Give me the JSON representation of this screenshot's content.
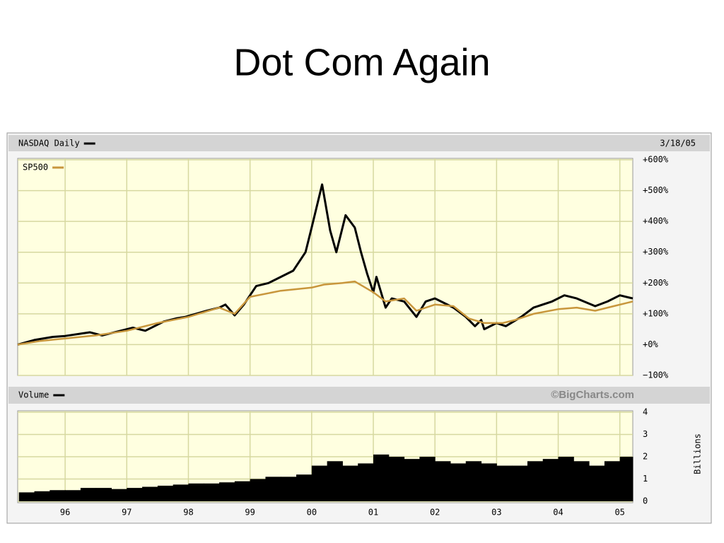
{
  "slide_title": "Dot Com Again",
  "chart_data": [
    {
      "type": "line",
      "date_label": "3/18/05",
      "xlim": [
        1995.23,
        2005.21
      ],
      "xticks": [
        1996,
        1997,
        1998,
        1999,
        2000,
        2001,
        2002,
        2003,
        2004,
        2005
      ],
      "ylim": [
        -100,
        600
      ],
      "yticks": [
        {
          "value": 600,
          "label": "+600%"
        },
        {
          "value": 500,
          "label": "+500%"
        },
        {
          "value": 400,
          "label": "+400%"
        },
        {
          "value": 300,
          "label": "+300%"
        },
        {
          "value": 200,
          "label": "+200%"
        },
        {
          "value": 100,
          "label": "+100%"
        },
        {
          "value": 0,
          "label": "+0%"
        },
        {
          "value": -100,
          "label": "−100%"
        }
      ],
      "grid": true,
      "series": [
        {
          "name": "NASDAQ Daily",
          "color": "#000000",
          "x": [
            1995.23,
            1995.5,
            1995.8,
            1996.0,
            1996.4,
            1996.6,
            1996.9,
            1997.1,
            1997.3,
            1997.6,
            1997.8,
            1997.95,
            1998.3,
            1998.5,
            1998.6,
            1998.75,
            1998.9,
            1999.1,
            1999.3,
            1999.5,
            1999.7,
            1999.9,
            2000.0,
            2000.17,
            2000.3,
            2000.4,
            2000.55,
            2000.7,
            2000.8,
            2000.9,
            2001.0,
            2001.05,
            2001.2,
            2001.3,
            2001.5,
            2001.7,
            2001.85,
            2002.0,
            2002.3,
            2002.5,
            2002.65,
            2002.75,
            2002.8,
            2003.0,
            2003.15,
            2003.4,
            2003.6,
            2003.9,
            2004.1,
            2004.3,
            2004.6,
            2004.8,
            2005.0,
            2005.21
          ],
          "values": [
            0,
            15,
            25,
            28,
            40,
            30,
            45,
            55,
            45,
            75,
            85,
            90,
            110,
            120,
            130,
            95,
            130,
            190,
            200,
            220,
            240,
            300,
            380,
            520,
            370,
            300,
            420,
            380,
            300,
            230,
            170,
            220,
            120,
            150,
            140,
            90,
            140,
            150,
            120,
            90,
            60,
            80,
            50,
            70,
            60,
            90,
            120,
            140,
            160,
            150,
            125,
            140,
            160,
            150
          ]
        },
        {
          "name": "SP500",
          "color": "#c8963c",
          "x": [
            1995.23,
            1995.6,
            1996.0,
            1996.5,
            1997.0,
            1997.5,
            1998.0,
            1998.5,
            1998.75,
            1999.0,
            1999.5,
            2000.0,
            2000.2,
            2000.5,
            2000.7,
            2001.0,
            2001.2,
            2001.5,
            2001.7,
            2002.0,
            2002.3,
            2002.55,
            2002.8,
            2003.1,
            2003.3,
            2003.6,
            2004.0,
            2004.3,
            2004.6,
            2004.9,
            2005.21
          ],
          "values": [
            0,
            12,
            20,
            30,
            45,
            70,
            90,
            120,
            100,
            155,
            175,
            185,
            195,
            200,
            205,
            170,
            140,
            150,
            110,
            130,
            125,
            85,
            70,
            70,
            80,
            100,
            115,
            120,
            110,
            125,
            140
          ]
        }
      ]
    },
    {
      "type": "bar",
      "source": "©BigCharts.com",
      "ylabel": "Billions",
      "xlim": [
        1995.23,
        2005.21
      ],
      "xticks": [
        {
          "value": 1996,
          "label": "96"
        },
        {
          "value": 1997,
          "label": "97"
        },
        {
          "value": 1998,
          "label": "98"
        },
        {
          "value": 1999,
          "label": "99"
        },
        {
          "value": 2000,
          "label": "00"
        },
        {
          "value": 2001,
          "label": "01"
        },
        {
          "value": 2002,
          "label": "02"
        },
        {
          "value": 2003,
          "label": "03"
        },
        {
          "value": 2004,
          "label": "04"
        },
        {
          "value": 2005,
          "label": "05"
        }
      ],
      "ylim": [
        0,
        4
      ],
      "yticks": [
        0,
        1,
        2,
        3,
        4
      ],
      "grid": true,
      "bar_span": 0.25,
      "series": [
        {
          "name": "Volume",
          "color": "#000000",
          "x": [
            1995.25,
            1995.5,
            1995.75,
            1996.0,
            1996.25,
            1996.5,
            1996.75,
            1997.0,
            1997.25,
            1997.5,
            1997.75,
            1998.0,
            1998.25,
            1998.5,
            1998.75,
            1999.0,
            1999.25,
            1999.5,
            1999.75,
            2000.0,
            2000.25,
            2000.5,
            2000.75,
            2001.0,
            2001.25,
            2001.5,
            2001.75,
            2002.0,
            2002.25,
            2002.5,
            2002.75,
            2003.0,
            2003.25,
            2003.5,
            2003.75,
            2004.0,
            2004.25,
            2004.5,
            2004.75,
            2005.0
          ],
          "values": [
            0.4,
            0.45,
            0.5,
            0.5,
            0.6,
            0.6,
            0.55,
            0.6,
            0.65,
            0.7,
            0.75,
            0.8,
            0.8,
            0.85,
            0.9,
            1.0,
            1.1,
            1.1,
            1.2,
            1.6,
            1.8,
            1.6,
            1.7,
            2.1,
            2.0,
            1.9,
            2.0,
            1.8,
            1.7,
            1.8,
            1.7,
            1.6,
            1.6,
            1.8,
            1.9,
            2.0,
            1.8,
            1.6,
            1.8,
            2.0
          ]
        }
      ]
    }
  ]
}
